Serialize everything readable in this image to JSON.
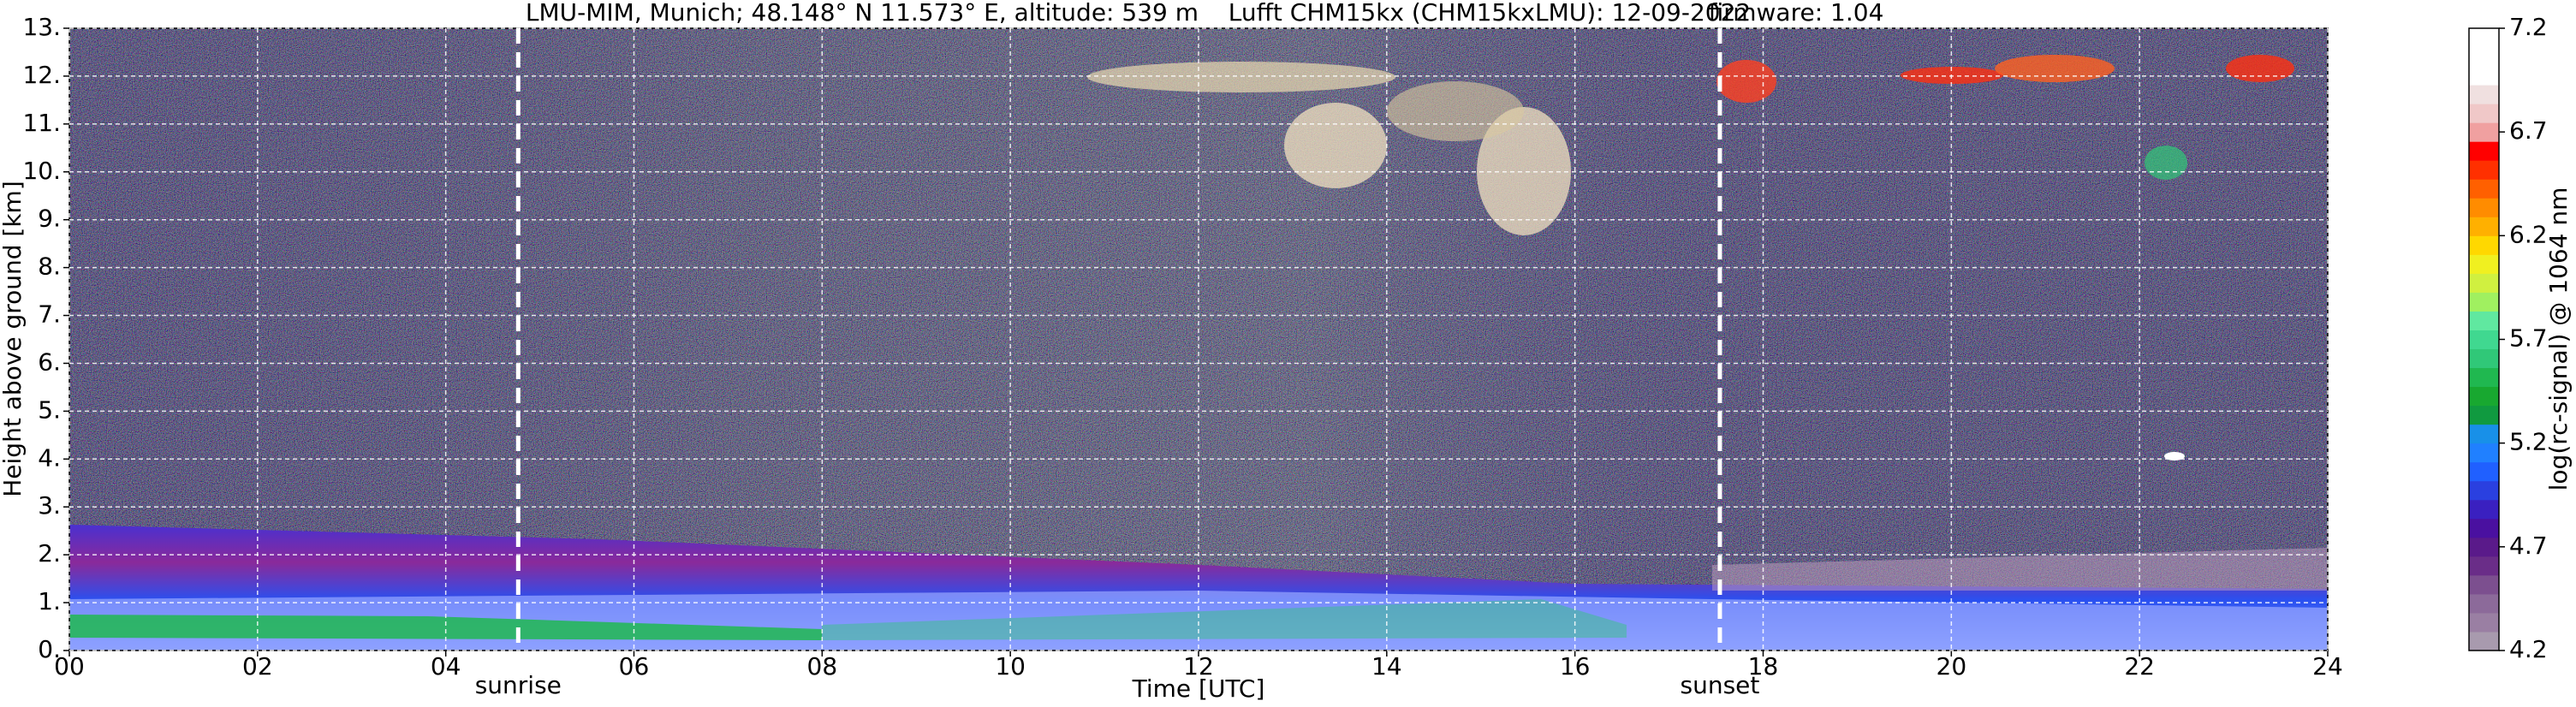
{
  "chart_data": {
    "type": "heatmap",
    "title": [
      "LMU-MIM, Munich; 48.148° N 11.573° E, altitude: 539 m",
      "Lufft CHM15kx (CHM15kxLMU): 12-09-2022",
      "firmware: 1.04"
    ],
    "x_label": "Time [UTC]",
    "y_label": "Height above ground [km]",
    "xlim": [
      0,
      24
    ],
    "xticks": [
      {
        "value": 0,
        "label": "00"
      },
      {
        "value": 2,
        "label": "02"
      },
      {
        "value": 4,
        "label": "04"
      },
      {
        "value": 6,
        "label": "06"
      },
      {
        "value": 8,
        "label": "08"
      },
      {
        "value": 10,
        "label": "10"
      },
      {
        "value": 12,
        "label": "12"
      },
      {
        "value": 14,
        "label": "14"
      },
      {
        "value": 16,
        "label": "16"
      },
      {
        "value": 18,
        "label": "18"
      },
      {
        "value": 20,
        "label": "20"
      },
      {
        "value": 22,
        "label": "22"
      },
      {
        "value": 24,
        "label": "24"
      }
    ],
    "ylim": [
      0,
      13
    ],
    "yticks": [
      {
        "value": 0,
        "label": "0."
      },
      {
        "value": 1,
        "label": "1."
      },
      {
        "value": 2,
        "label": "2."
      },
      {
        "value": 3,
        "label": "3."
      },
      {
        "value": 4,
        "label": "4."
      },
      {
        "value": 5,
        "label": "5."
      },
      {
        "value": 6,
        "label": "6."
      },
      {
        "value": 7,
        "label": "7."
      },
      {
        "value": 8,
        "label": "8."
      },
      {
        "value": 9,
        "label": "9."
      },
      {
        "value": 10,
        "label": "10."
      },
      {
        "value": 11,
        "label": "11."
      },
      {
        "value": 12,
        "label": "12."
      },
      {
        "value": 13,
        "label": "13."
      }
    ],
    "grid": true,
    "annotations": [
      {
        "label": "sunrise",
        "x": 4.77
      },
      {
        "label": "sunset",
        "x": 17.54
      }
    ],
    "colorbar": {
      "label": "log(rc-signal) @ 1064 nm",
      "lim": [
        4.2,
        7.2
      ],
      "ticks": [
        4.2,
        4.7,
        5.2,
        5.7,
        6.2,
        6.7,
        7.2
      ],
      "colors": [
        "#a89aae",
        "#9a7fa3",
        "#8c6a9a",
        "#7c4f8f",
        "#6a2d88",
        "#5a1a8a",
        "#4a10a0",
        "#3a20c0",
        "#2a40e0",
        "#2060ff",
        "#2080ff",
        "#1890e8",
        "#109a40",
        "#18a830",
        "#20b850",
        "#30c878",
        "#40d890",
        "#60e8a0",
        "#a0f060",
        "#d0f040",
        "#f0f020",
        "#ffd800",
        "#ffb000",
        "#ff8c00",
        "#ff6000",
        "#ff3000",
        "#ff0000",
        "#f0a0a0",
        "#f0c8c8",
        "#f0e0e0",
        "#ffffff",
        "#ffffff",
        "#ffffff"
      ]
    }
  }
}
